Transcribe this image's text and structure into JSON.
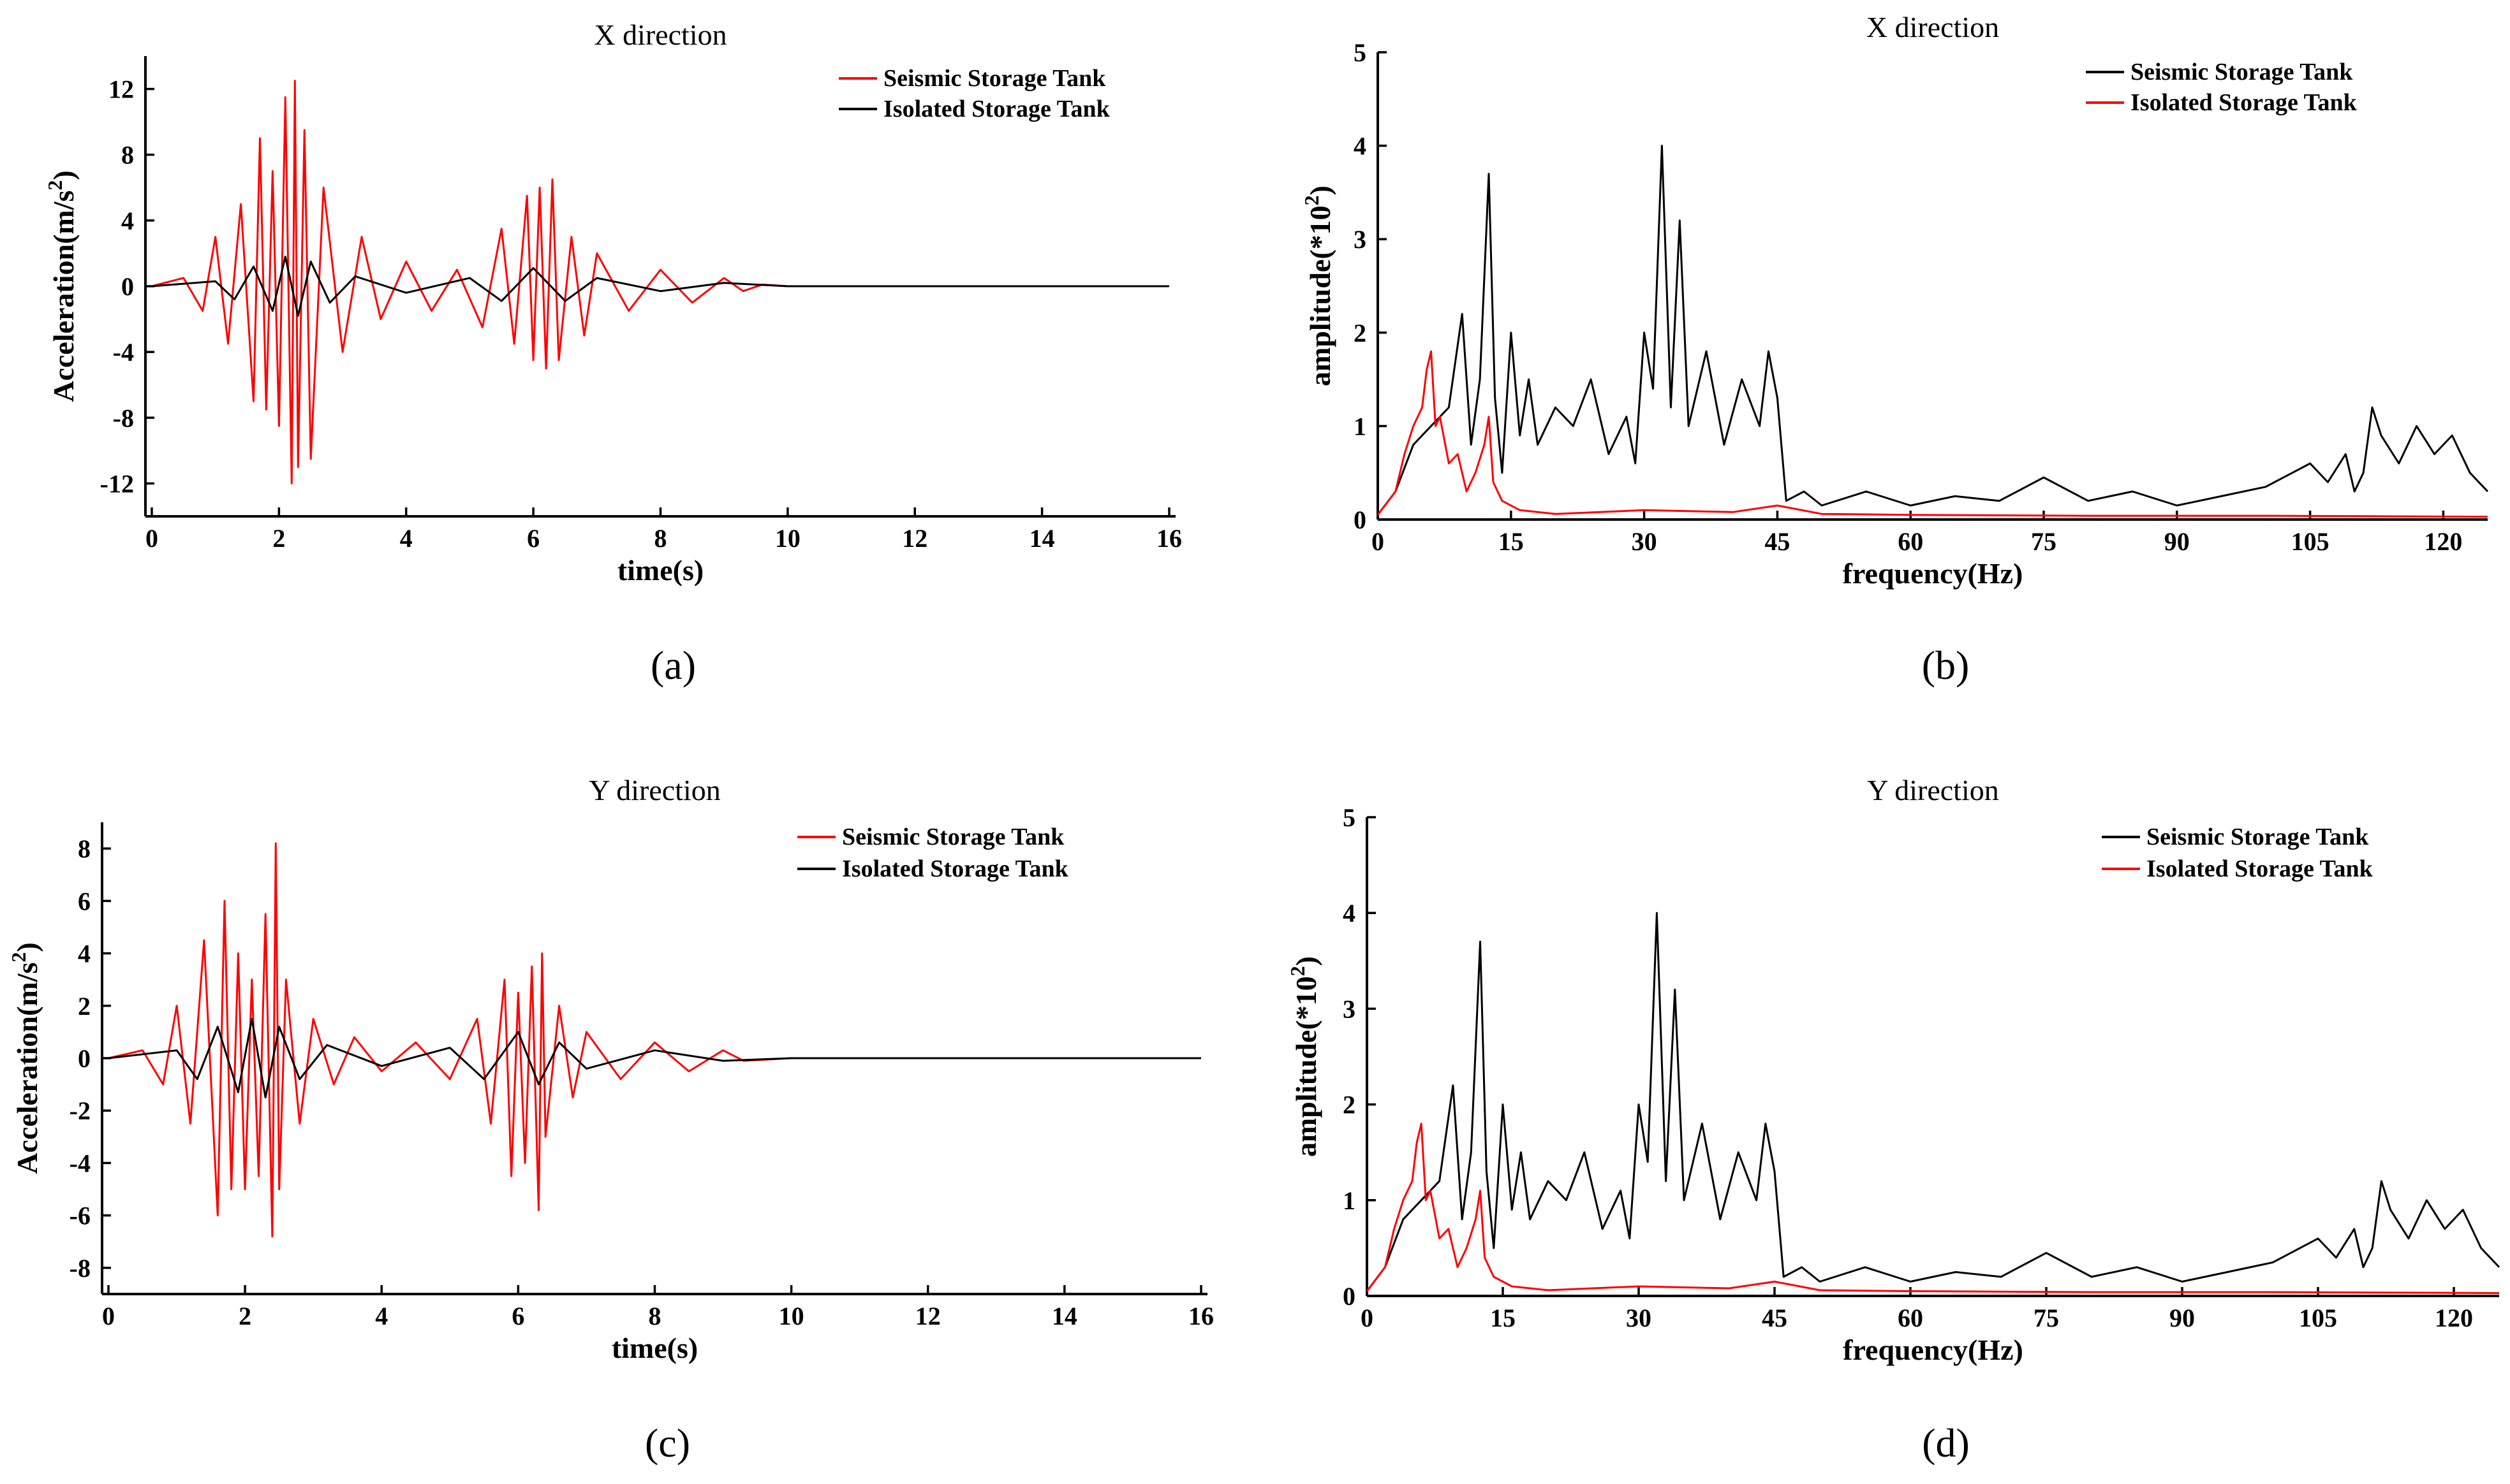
{
  "colors": {
    "seismic_time": "#ff0000",
    "isolated_time": "#000000",
    "spectrum_black": "#000000",
    "spectrum_red": "#ff0000"
  },
  "chart_data": [
    {
      "id": "a",
      "type": "line",
      "panel_label": "(a)",
      "title": "X direction",
      "xlabel": "time(s)",
      "ylabel_main": "Acceleration(m/s",
      "ylabel_sup": "2",
      "ylabel_end": ")",
      "xlim": [
        0,
        16
      ],
      "ylim": [
        -14,
        14
      ],
      "xticks": [
        0,
        2,
        4,
        6,
        8,
        10,
        12,
        14,
        16
      ],
      "xtick_labels": [
        "0",
        "2",
        "4",
        "6",
        "8",
        "10",
        "12",
        "14",
        "16"
      ],
      "yticks": [
        12,
        8,
        4,
        0,
        -4,
        -8,
        -12
      ],
      "ytick_labels": [
        "12",
        "8",
        "4",
        "0",
        "-4",
        "-8",
        "-12"
      ],
      "series": [
        {
          "name": "Seismic Storage Tank",
          "color": "#ff0000",
          "x": [
            0,
            0.5,
            0.8,
            1.0,
            1.2,
            1.4,
            1.6,
            1.7,
            1.8,
            1.9,
            2.0,
            2.1,
            2.2,
            2.25,
            2.3,
            2.4,
            2.5,
            2.7,
            3.0,
            3.3,
            3.6,
            4.0,
            4.4,
            4.8,
            5.2,
            5.5,
            5.7,
            5.9,
            6.0,
            6.1,
            6.2,
            6.3,
            6.4,
            6.6,
            6.8,
            7.0,
            7.5,
            8.0,
            8.5,
            9.0,
            9.3,
            9.6,
            10,
            12,
            14,
            16
          ],
          "y": [
            0,
            0.5,
            -1.5,
            3,
            -3.5,
            5,
            -7,
            9,
            -7.5,
            7,
            -8.5,
            11.5,
            -12,
            12.5,
            -11,
            9.5,
            -10.5,
            6,
            -4,
            3,
            -2,
            1.5,
            -1.5,
            1,
            -2.5,
            3.5,
            -3.5,
            5.5,
            -4.5,
            6,
            -5,
            6.5,
            -4.5,
            3,
            -3,
            2,
            -1.5,
            1,
            -1,
            0.5,
            -0.3,
            0.1,
            0,
            0,
            0,
            0
          ]
        },
        {
          "name": "Isolated Storage Tank",
          "color": "#000000",
          "x": [
            0,
            1.0,
            1.3,
            1.6,
            1.9,
            2.1,
            2.3,
            2.5,
            2.8,
            3.2,
            4,
            5,
            5.5,
            6.0,
            6.5,
            7,
            8,
            9,
            10,
            16
          ],
          "y": [
            0,
            0.3,
            -0.8,
            1.2,
            -1.5,
            1.8,
            -1.8,
            1.5,
            -1,
            0.6,
            -0.4,
            0.5,
            -0.9,
            1.1,
            -0.9,
            0.5,
            -0.3,
            0.2,
            0,
            0
          ]
        }
      ],
      "legend": [
        "Seismic Storage Tank",
        "Isolated Storage Tank"
      ]
    },
    {
      "id": "b",
      "type": "line",
      "panel_label": "(b)",
      "title": "X direction",
      "xlabel": "frequency(Hz)",
      "ylabel_main": "amplitude(*10",
      "ylabel_sup": "2",
      "ylabel_end": ")",
      "xlim": [
        0,
        125
      ],
      "ylim": [
        0,
        5
      ],
      "xticks": [
        0,
        15,
        30,
        45,
        60,
        75,
        90,
        105,
        120
      ],
      "xtick_labels": [
        "0",
        "15",
        "30",
        "45",
        "60",
        "75",
        "90",
        "105",
        "120"
      ],
      "yticks": [
        0,
        1,
        2,
        3,
        4,
        5
      ],
      "ytick_labels": [
        "0",
        "1",
        "2",
        "3",
        "4",
        "5"
      ],
      "series": [
        {
          "name": "Seismic Storage Tank",
          "color": "#000000",
          "x": [
            0,
            2,
            4,
            6,
            8,
            9.5,
            10.5,
            11.5,
            12.5,
            13.2,
            14,
            15,
            16,
            17,
            18,
            20,
            22,
            24,
            26,
            28,
            29,
            30,
            31,
            32,
            33,
            34,
            35,
            37,
            39,
            41,
            43,
            44,
            45,
            46,
            48,
            50,
            55,
            60,
            65,
            70,
            75,
            80,
            85,
            90,
            95,
            100,
            103,
            105,
            107,
            109,
            110,
            111,
            112,
            113,
            115,
            117,
            119,
            121,
            123,
            125
          ],
          "y": [
            0.05,
            0.3,
            0.8,
            1.0,
            1.2,
            2.2,
            0.8,
            1.5,
            3.7,
            1.3,
            0.5,
            2.0,
            0.9,
            1.5,
            0.8,
            1.2,
            1.0,
            1.5,
            0.7,
            1.1,
            0.6,
            2.0,
            1.4,
            4.0,
            1.2,
            3.2,
            1.0,
            1.8,
            0.8,
            1.5,
            1.0,
            1.8,
            1.3,
            0.2,
            0.3,
            0.15,
            0.3,
            0.15,
            0.25,
            0.2,
            0.45,
            0.2,
            0.3,
            0.15,
            0.25,
            0.35,
            0.5,
            0.6,
            0.4,
            0.7,
            0.3,
            0.5,
            1.2,
            0.9,
            0.6,
            1.0,
            0.7,
            0.9,
            0.5,
            0.3
          ]
        },
        {
          "name": "Isolated Storage Tank",
          "color": "#ff0000",
          "x": [
            0,
            2,
            3,
            4,
            5,
            5.5,
            6,
            6.5,
            7,
            8,
            9,
            10,
            11,
            12,
            12.5,
            13,
            14,
            16,
            20,
            30,
            40,
            45,
            50,
            60,
            80,
            100,
            125
          ],
          "y": [
            0.05,
            0.3,
            0.7,
            1.0,
            1.2,
            1.6,
            1.8,
            1.0,
            1.1,
            0.6,
            0.7,
            0.3,
            0.5,
            0.8,
            1.1,
            0.4,
            0.2,
            0.1,
            0.06,
            0.1,
            0.08,
            0.15,
            0.06,
            0.05,
            0.04,
            0.04,
            0.03
          ]
        }
      ],
      "legend": [
        "Seismic Storage Tank",
        "Isolated Storage Tank"
      ]
    },
    {
      "id": "c",
      "type": "line",
      "panel_label": "(c)",
      "title": "Y direction",
      "xlabel": "time(s)",
      "ylabel_main": "Acceleration(m/s",
      "ylabel_sup": "2",
      "ylabel_end": ")",
      "xlim": [
        0,
        16
      ],
      "ylim": [
        -9,
        9
      ],
      "xticks": [
        0,
        2,
        4,
        6,
        8,
        10,
        12,
        14,
        16
      ],
      "xtick_labels": [
        "0",
        "2",
        "4",
        "6",
        "8",
        "10",
        "12",
        "14",
        "16"
      ],
      "yticks": [
        8,
        6,
        4,
        2,
        0,
        -2,
        -4,
        -6,
        -8
      ],
      "ytick_labels": [
        "8",
        "6",
        "4",
        "2",
        "0",
        "-2",
        "-4",
        "-6",
        "-8"
      ],
      "series": [
        {
          "name": "Seismic Storage Tank",
          "color": "#ff0000",
          "x": [
            0,
            0.5,
            0.8,
            1.0,
            1.2,
            1.4,
            1.6,
            1.7,
            1.8,
            1.9,
            2.0,
            2.1,
            2.2,
            2.3,
            2.4,
            2.45,
            2.5,
            2.6,
            2.8,
            3.0,
            3.3,
            3.6,
            4.0,
            4.5,
            5.0,
            5.4,
            5.6,
            5.8,
            5.9,
            6.0,
            6.1,
            6.2,
            6.3,
            6.35,
            6.4,
            6.6,
            6.8,
            7.0,
            7.5,
            8.0,
            8.5,
            9.0,
            9.3,
            10,
            16
          ],
          "y": [
            0,
            0.3,
            -1,
            2,
            -2.5,
            4.5,
            -6,
            6,
            -5,
            4,
            -5,
            3,
            -4.5,
            5.5,
            -6.8,
            8.2,
            -5,
            3,
            -2.5,
            1.5,
            -1,
            0.8,
            -0.5,
            0.6,
            -0.8,
            1.5,
            -2.5,
            3,
            -4.5,
            2.5,
            -4,
            3.5,
            -5.8,
            4,
            -3,
            2,
            -1.5,
            1,
            -0.8,
            0.6,
            -0.5,
            0.3,
            -0.1,
            0,
            0
          ]
        },
        {
          "name": "Isolated Storage Tank",
          "color": "#000000",
          "x": [
            0,
            1.0,
            1.3,
            1.6,
            1.9,
            2.1,
            2.3,
            2.5,
            2.8,
            3.2,
            4,
            5,
            5.5,
            6.0,
            6.3,
            6.6,
            7,
            8,
            9,
            10,
            16
          ],
          "y": [
            0,
            0.3,
            -0.8,
            1.2,
            -1.3,
            1.5,
            -1.5,
            1.2,
            -0.8,
            0.5,
            -0.3,
            0.4,
            -0.8,
            1.0,
            -1.0,
            0.6,
            -0.4,
            0.3,
            -0.1,
            0,
            0
          ]
        }
      ],
      "legend": [
        "Seismic Storage Tank",
        "Isolated Storage Tank"
      ]
    },
    {
      "id": "d",
      "type": "line",
      "panel_label": "(d)",
      "title": "Y direction",
      "xlabel": "frequency(Hz)",
      "ylabel_main": "amplitude(*10",
      "ylabel_sup": "2",
      "ylabel_end": ")",
      "xlim": [
        0,
        125
      ],
      "ylim": [
        0,
        5
      ],
      "xticks": [
        0,
        15,
        30,
        45,
        60,
        75,
        90,
        105,
        120
      ],
      "xtick_labels": [
        "0",
        "15",
        "30",
        "45",
        "60",
        "75",
        "90",
        "105",
        "120"
      ],
      "yticks": [
        0,
        1,
        2,
        3,
        4,
        5
      ],
      "ytick_labels": [
        "0",
        "1",
        "2",
        "3",
        "4",
        "5"
      ],
      "series": [
        {
          "name": "Seismic Storage Tank",
          "color": "#000000",
          "x": [
            0,
            2,
            4,
            6,
            8,
            9.5,
            10.5,
            11.5,
            12.5,
            13.2,
            14,
            15,
            16,
            17,
            18,
            20,
            22,
            24,
            26,
            28,
            29,
            30,
            31,
            32,
            33,
            34,
            35,
            37,
            39,
            41,
            43,
            44,
            45,
            46,
            48,
            50,
            55,
            60,
            65,
            70,
            75,
            80,
            85,
            90,
            95,
            100,
            103,
            105,
            107,
            109,
            110,
            111,
            112,
            113,
            115,
            117,
            119,
            121,
            123,
            125
          ],
          "y": [
            0.05,
            0.3,
            0.8,
            1.0,
            1.2,
            2.2,
            0.8,
            1.5,
            3.7,
            1.3,
            0.5,
            2.0,
            0.9,
            1.5,
            0.8,
            1.2,
            1.0,
            1.5,
            0.7,
            1.1,
            0.6,
            2.0,
            1.4,
            4.0,
            1.2,
            3.2,
            1.0,
            1.8,
            0.8,
            1.5,
            1.0,
            1.8,
            1.3,
            0.2,
            0.3,
            0.15,
            0.3,
            0.15,
            0.25,
            0.2,
            0.45,
            0.2,
            0.3,
            0.15,
            0.25,
            0.35,
            0.5,
            0.6,
            0.4,
            0.7,
            0.3,
            0.5,
            1.2,
            0.9,
            0.6,
            1.0,
            0.7,
            0.9,
            0.5,
            0.3
          ]
        },
        {
          "name": "Isolated Storage Tank",
          "color": "#ff0000",
          "x": [
            0,
            2,
            3,
            4,
            5,
            5.5,
            6,
            6.5,
            7,
            8,
            9,
            10,
            11,
            12,
            12.5,
            13,
            14,
            16,
            20,
            30,
            40,
            45,
            50,
            60,
            80,
            100,
            125
          ],
          "y": [
            0.05,
            0.3,
            0.7,
            1.0,
            1.2,
            1.6,
            1.8,
            1.0,
            1.1,
            0.6,
            0.7,
            0.3,
            0.5,
            0.8,
            1.1,
            0.4,
            0.2,
            0.1,
            0.06,
            0.1,
            0.08,
            0.15,
            0.06,
            0.05,
            0.04,
            0.04,
            0.03
          ]
        }
      ],
      "legend": [
        "Seismic Storage Tank",
        "Isolated Storage Tank"
      ]
    }
  ]
}
